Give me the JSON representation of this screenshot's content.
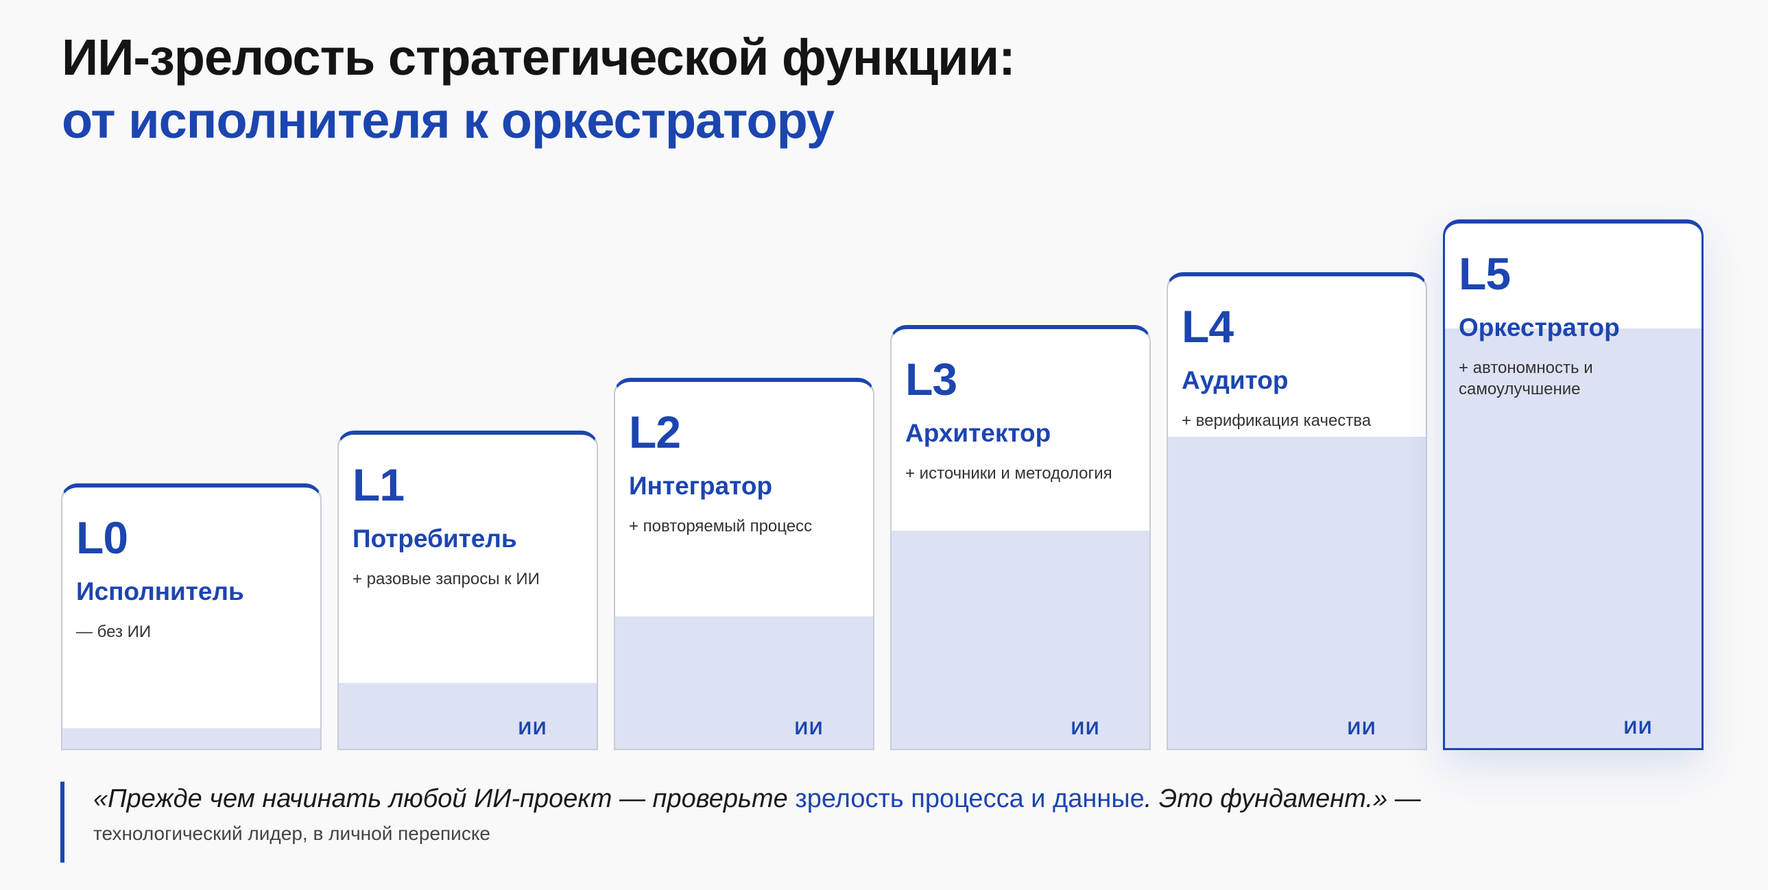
{
  "title": {
    "line1": "ИИ-зрелость стратегической функции:",
    "line2": "от исполнителя к оркестратору"
  },
  "levels": [
    {
      "level": "L0",
      "role": "Исполнитель",
      "desc": "— без ИИ",
      "ai_label": "",
      "ai_share": 0.08
    },
    {
      "level": "L1",
      "role": "Потребитель",
      "desc": "+ разовые запросы к ИИ",
      "ai_label": "ИИ",
      "ai_share": 0.21
    },
    {
      "level": "L2",
      "role": "Интегратор",
      "desc": "+ повторяемый процесс",
      "ai_label": "ИИ",
      "ai_share": 0.36
    },
    {
      "level": "L3",
      "role": "Архитектор",
      "desc": "+ источники и методология",
      "ai_label": "ИИ",
      "ai_share": 0.52
    },
    {
      "level": "L4",
      "role": "Аудитор",
      "desc": "+ верификация качества",
      "ai_label": "ИИ",
      "ai_share": 0.66
    },
    {
      "level": "L5",
      "role": "Оркестратор",
      "desc": "+ автономность и самоулучшение",
      "ai_label": "ИИ",
      "ai_share": 0.8
    }
  ],
  "quote": {
    "before": "«Прежде чем начинать любой ИИ-проект — проверьте ",
    "highlight": "зрелость процесса и данные",
    "after": ". Это фундамент.»",
    "dash": " —",
    "author": "технологический лидер, в личной переписке"
  },
  "colors": {
    "accent": "#1c45b0",
    "ai_fill": "#dce1f3",
    "title": "#141414"
  }
}
